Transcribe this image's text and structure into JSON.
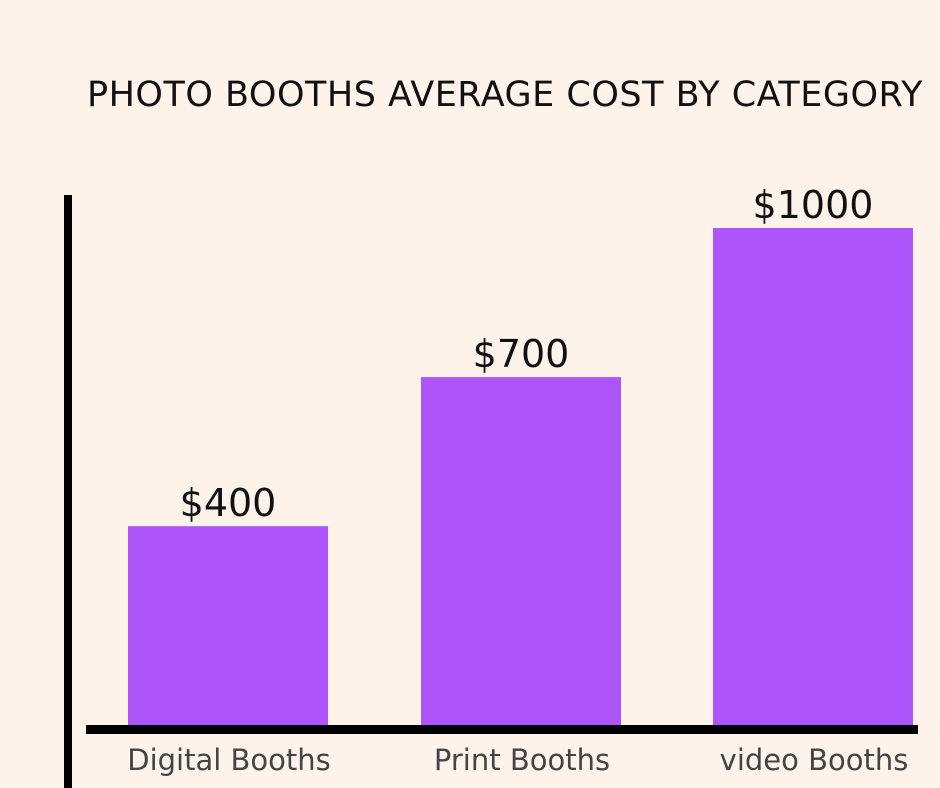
{
  "chart_data": {
    "type": "bar",
    "title": "PHOTO BOOTHS AVERAGE COST BY CATEGORY",
    "categories": [
      "Digital Booths",
      "Print Booths",
      "video Booths"
    ],
    "values": [
      400,
      700,
      1000
    ],
    "data_labels": [
      "$400",
      "$700",
      "$1000"
    ],
    "xlabel": "",
    "ylabel": "",
    "ylim": [
      0,
      1000
    ],
    "grid": false,
    "legend": "none",
    "colors": {
      "bar": "#ad55fa",
      "axis": "#000000",
      "background": "#fdf3ea"
    }
  }
}
